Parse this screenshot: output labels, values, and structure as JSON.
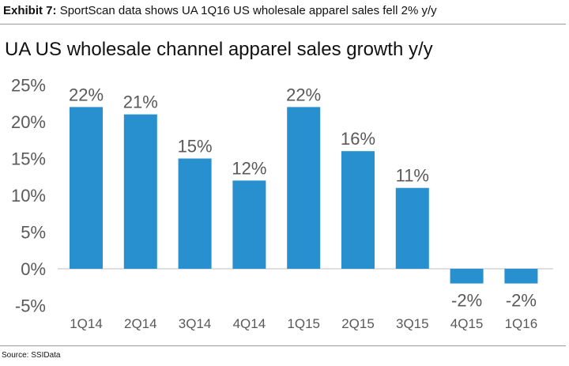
{
  "exhibit": {
    "label": "Exhibit 7:",
    "caption": "SportScan data shows UA 1Q16 US wholesale apparel sales fell 2% y/y"
  },
  "source": "Source: SSIData",
  "colors": {
    "bar": "#2990cf",
    "text": "#595959",
    "axis": "#bfbfbf"
  },
  "chart_data": {
    "type": "bar",
    "title": "UA US wholesale channel apparel sales growth y/y",
    "xlabel": "",
    "ylabel": "",
    "categories": [
      "1Q14",
      "2Q14",
      "3Q14",
      "4Q14",
      "1Q15",
      "2Q15",
      "3Q15",
      "4Q15",
      "1Q16"
    ],
    "values": [
      22,
      21,
      15,
      12,
      22,
      16,
      11,
      -2,
      -2
    ],
    "data_labels": [
      "22%",
      "21%",
      "15%",
      "12%",
      "22%",
      "16%",
      "11%",
      "-2%",
      "-2%"
    ],
    "yticks": [
      25,
      20,
      15,
      10,
      5,
      0,
      -5
    ],
    "ytick_labels": [
      "25%",
      "20%",
      "15%",
      "10%",
      "5%",
      "0%",
      "-5%"
    ],
    "ylim": [
      -5,
      25
    ],
    "grid": false,
    "legend": "none"
  }
}
